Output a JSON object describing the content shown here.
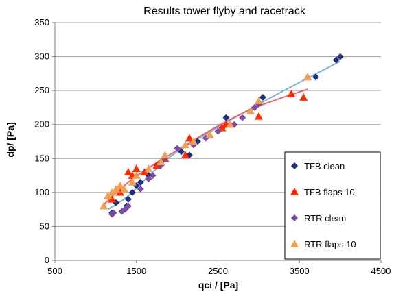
{
  "chart_data": {
    "type": "scatter",
    "title": "Results tower flyby and racetrack",
    "xlabel": "qci / [Pa]",
    "ylabel": "dp/ [Pa]",
    "xlim": [
      500,
      4500
    ],
    "ylim": [
      0,
      350
    ],
    "xticks": [
      500,
      1500,
      2500,
      3500,
      4500
    ],
    "yticks": [
      0,
      50,
      100,
      150,
      200,
      250,
      300,
      350
    ],
    "grid": "horizontal",
    "legend_position": "bottom-right",
    "series": [
      {
        "name": "TFB clean",
        "marker": "diamond",
        "color": "#1f2f7a",
        "x": [
          1200,
          1250,
          1380,
          1400,
          1450,
          1500,
          1550,
          1650,
          1750,
          1800,
          1850,
          2050,
          2150,
          2250,
          2550,
          2600,
          2650,
          2950,
          3050,
          3700,
          3950,
          4000
        ],
        "y": [
          70,
          85,
          80,
          90,
          100,
          110,
          115,
          125,
          140,
          145,
          150,
          160,
          155,
          175,
          195,
          210,
          200,
          225,
          240,
          270,
          295,
          300
        ]
      },
      {
        "name": "TFB flaps 10",
        "marker": "triangle",
        "color": "#ff2a00",
        "x": [
          1100,
          1200,
          1300,
          1400,
          1450,
          1500,
          1600,
          1750,
          1850,
          2100,
          2150,
          2400,
          2550,
          2600,
          3000,
          3400,
          3550,
          3600
        ],
        "y": [
          80,
          90,
          100,
          130,
          125,
          135,
          130,
          140,
          150,
          155,
          180,
          185,
          195,
          200,
          212,
          245,
          240,
          270
        ]
      },
      {
        "name": "RTR clean",
        "marker": "diamond",
        "color": "#7b4aa6",
        "x": [
          1200,
          1220,
          1320,
          1360,
          1400,
          1550,
          1650,
          1700,
          1800,
          1850,
          2000,
          2200,
          2350,
          2500,
          2700,
          2800,
          2950,
          3000
        ],
        "y": [
          68,
          70,
          72,
          75,
          80,
          105,
          120,
          125,
          140,
          150,
          165,
          170,
          180,
          190,
          200,
          210,
          225,
          230
        ]
      },
      {
        "name": "RTR flaps 10",
        "marker": "triangle",
        "color": "#f0a050",
        "x": [
          1100,
          1150,
          1200,
          1250,
          1300,
          1350,
          1450,
          1500,
          1650,
          1800,
          1850,
          2100,
          2200,
          2400,
          2650,
          2900,
          3000,
          3600
        ],
        "y": [
          80,
          95,
          100,
          105,
          110,
          105,
          115,
          125,
          135,
          145,
          155,
          170,
          175,
          185,
          200,
          220,
          235,
          270
        ]
      }
    ],
    "trendlines": [
      {
        "color": "#7fb0e0",
        "x": [
          1150,
          1400,
          1700,
          2000,
          2500,
          3000,
          3500,
          4000
        ],
        "y": [
          75,
          95,
          130,
          160,
          196,
          230,
          262,
          293
        ]
      },
      {
        "color": "#ee6666",
        "x": [
          1080,
          1400,
          1700,
          2000,
          2500,
          3000,
          3600
        ],
        "y": [
          80,
          115,
          140,
          162,
          198,
          227,
          252
        ]
      }
    ]
  }
}
